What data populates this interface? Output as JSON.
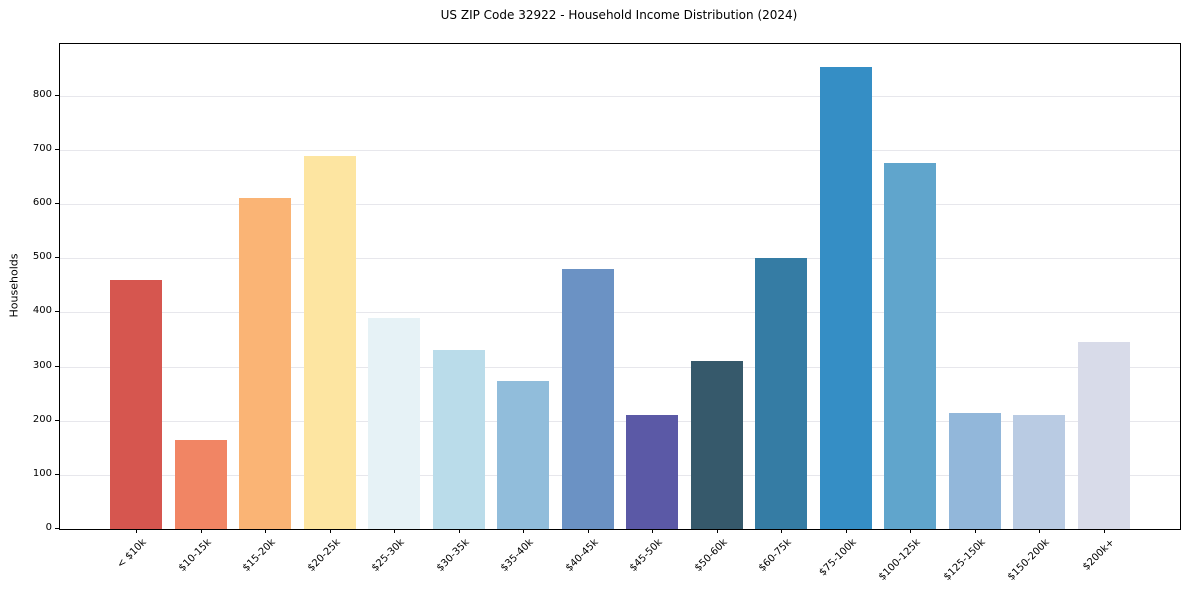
{
  "chart_data": {
    "type": "bar",
    "title": "US ZIP Code 32922 - Household Income Distribution (2024)",
    "xlabel": "",
    "ylabel": "Households",
    "categories": [
      "< $10k",
      "$10-15k",
      "$15-20k",
      "$20-25k",
      "$25-30k",
      "$30-35k",
      "$35-40k",
      "$40-45k",
      "$45-50k",
      "$50-60k",
      "$60-75k",
      "$75-100k",
      "$100-125k",
      "$125-150k",
      "$150-200k",
      "$200k+"
    ],
    "values": [
      460,
      165,
      611,
      689,
      389,
      330,
      273,
      480,
      211,
      311,
      500,
      853,
      676,
      215,
      210,
      346
    ],
    "bar_colors": [
      "#d6564f",
      "#f18564",
      "#fab475",
      "#fde5a1",
      "#e6f2f6",
      "#badcea",
      "#91bddb",
      "#6b92c4",
      "#5b59a6",
      "#36596b",
      "#357ca4",
      "#358ec5",
      "#60a5cc",
      "#92b7da",
      "#b9cbe3",
      "#d8dbe9"
    ],
    "yticks": [
      0,
      100,
      200,
      300,
      400,
      500,
      600,
      700,
      800
    ],
    "ylim": [
      0,
      896
    ],
    "grid": "horizontal",
    "legend_position": "none",
    "xtick_rotation_deg": 45,
    "spine_color": "#000000",
    "gridline_color": "#e7e7ec",
    "background_color": "#ffffff"
  }
}
